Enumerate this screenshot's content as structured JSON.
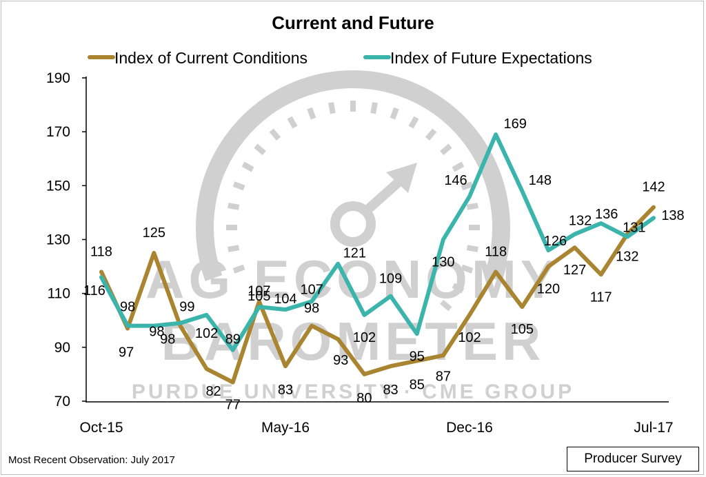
{
  "title": "Current and Future",
  "footnote": "Most Recent Observation: July 2017",
  "badge": "Producer Survey",
  "watermark": {
    "line1": "AG ECONOMY",
    "line2": "BAROMETER",
    "line3": "PURDUE UNIVERSITY · CME GROUP",
    "color": "#d0d0d0"
  },
  "chart_data": {
    "type": "line",
    "title": "Current and Future",
    "xlabel": "",
    "ylabel": "",
    "ylim": [
      70,
      190
    ],
    "yticks": [
      70,
      90,
      110,
      130,
      150,
      170,
      190
    ],
    "x_tick_labels": [
      {
        "index": 0,
        "label": "Oct-15"
      },
      {
        "index": 7,
        "label": "May-16"
      },
      {
        "index": 14,
        "label": "Dec-16"
      },
      {
        "index": 21,
        "label": "Jul-17"
      }
    ],
    "grid": false,
    "legend_position": "top",
    "series": [
      {
        "name": "Index of Current Conditions",
        "color": "#a98431",
        "values": [
          118,
          97,
          125,
          98,
          82,
          77,
          107,
          83,
          98,
          93,
          80,
          83,
          85,
          87,
          102,
          118,
          105,
          120,
          127,
          117,
          132,
          142
        ]
      },
      {
        "name": "Index of Future Expectations",
        "color": "#3bb5ac",
        "values": [
          116,
          98,
          98,
          99,
          102,
          89,
          105,
          104,
          107,
          121,
          102,
          109,
          95,
          130,
          146,
          169,
          148,
          126,
          132,
          136,
          131,
          138
        ]
      }
    ]
  }
}
